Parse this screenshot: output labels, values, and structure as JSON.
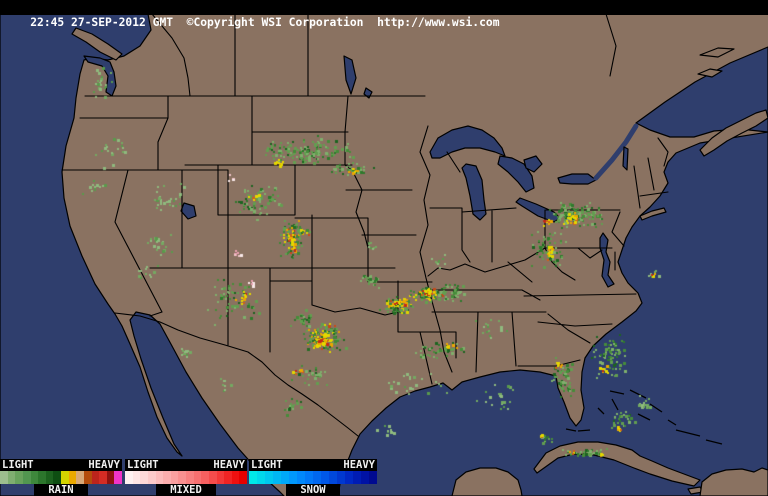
{
  "header": {
    "title": "22:45 27-SEP-2012 GMT  ©Copyright WSI Corporation  http://www.wsi.com"
  },
  "map": {
    "land_color": "#8a7261",
    "water_color": "#2f3e6d",
    "border_color": "#000000",
    "header_bg": "#000000",
    "header_fg": "#ffffff"
  },
  "legend": {
    "sections": [
      {
        "label": "RAIN",
        "light_label": "LIGHT",
        "heavy_label": "HEAVY",
        "colors": [
          "#9cbe8e",
          "#7fae70",
          "#68a25c",
          "#529650",
          "#3e883c",
          "#2c762c",
          "#1c621e",
          "#0e4e12",
          "#d4d400",
          "#eaa800",
          "#d8a878",
          "#b44c0c",
          "#bc241c",
          "#d42c24",
          "#8e1210",
          "#f034c8"
        ]
      },
      {
        "label": "MIXED",
        "light_label": "LIGHT",
        "heavy_label": "HEAVY",
        "colors": [
          "#fef2f2",
          "#fee6e6",
          "#fdd8d8",
          "#fccaca",
          "#fcbcbc",
          "#fbaeae",
          "#faa0a0",
          "#f99090",
          "#f88080",
          "#f77070",
          "#f66060",
          "#f44c4c",
          "#f23838",
          "#f02424",
          "#ee1010",
          "#e60000"
        ]
      },
      {
        "label": "SNOW",
        "light_label": "LIGHT",
        "heavy_label": "HEAVY",
        "colors": [
          "#00e8e8",
          "#00d8ec",
          "#00c8f0",
          "#00b8f4",
          "#00a8f8",
          "#0098fc",
          "#0088fc",
          "#0078f8",
          "#0068f0",
          "#0058e8",
          "#0048dc",
          "#0038d0",
          "#0028c4",
          "#001cb4",
          "#0012a4",
          "#000a90"
        ]
      }
    ]
  },
  "radar": {
    "dot": {
      "small": 2,
      "large": 3,
      "large_prob": 0.25
    },
    "palettes": {
      "light": [
        [
          "#8fba7e",
          5
        ],
        [
          "#74aa62",
          3
        ],
        [
          "#5a9a4c",
          2
        ]
      ],
      "mod": [
        [
          "#7fb06c",
          3
        ],
        [
          "#639e50",
          3
        ],
        [
          "#468c3a",
          2
        ],
        [
          "#2e7a2c",
          1.5
        ],
        [
          "#1c6420",
          1
        ]
      ],
      "heavy": [
        [
          "#63a050",
          3
        ],
        [
          "#3f8838",
          2.5
        ],
        [
          "#256c24",
          2
        ],
        [
          "#e0d400",
          1.5
        ],
        [
          "#e8a400",
          0.8
        ],
        [
          "#c84818",
          0.4
        ]
      ],
      "core": [
        [
          "#e4d800",
          5
        ],
        [
          "#eca800",
          3
        ],
        [
          "#d06018",
          1.5
        ],
        [
          "#c42818",
          1
        ]
      ],
      "mixedp": [
        [
          "#f8e8e8",
          3
        ],
        [
          "#f0c4c8",
          2
        ],
        [
          "#e8a0b0",
          1
        ]
      ]
    },
    "clusters": [
      [
        100,
        80,
        16,
        18,
        22,
        "light"
      ],
      [
        112,
        148,
        18,
        22,
        18,
        "light"
      ],
      [
        92,
        186,
        13,
        10,
        12,
        "light"
      ],
      [
        168,
        198,
        20,
        16,
        28,
        "light"
      ],
      [
        158,
        243,
        16,
        13,
        22,
        "light"
      ],
      [
        146,
        270,
        12,
        9,
        12,
        "light"
      ],
      [
        305,
        150,
        52,
        15,
        150,
        "mod"
      ],
      [
        352,
        168,
        24,
        7,
        40,
        "mod"
      ],
      [
        278,
        161,
        5,
        4,
        10,
        "core"
      ],
      [
        352,
        170,
        6,
        3,
        8,
        "core"
      ],
      [
        255,
        200,
        26,
        20,
        70,
        "mod"
      ],
      [
        252,
        197,
        7,
        5,
        10,
        "core"
      ],
      [
        290,
        238,
        13,
        20,
        80,
        "heavy"
      ],
      [
        291,
        240,
        4,
        13,
        35,
        "core"
      ],
      [
        302,
        230,
        12,
        7,
        25,
        "heavy"
      ],
      [
        233,
        300,
        32,
        28,
        60,
        "mod"
      ],
      [
        244,
        297,
        10,
        8,
        12,
        "core"
      ],
      [
        322,
        337,
        24,
        15,
        130,
        "heavy"
      ],
      [
        322,
        339,
        11,
        7,
        40,
        "core"
      ],
      [
        300,
        317,
        13,
        9,
        25,
        "mod"
      ],
      [
        370,
        280,
        12,
        8,
        25,
        "mod"
      ],
      [
        395,
        304,
        18,
        9,
        70,
        "heavy"
      ],
      [
        425,
        294,
        17,
        8,
        70,
        "heavy"
      ],
      [
        398,
        302,
        9,
        4,
        25,
        "core"
      ],
      [
        428,
        292,
        9,
        4,
        25,
        "core"
      ],
      [
        450,
        292,
        18,
        11,
        50,
        "mod"
      ],
      [
        308,
        374,
        22,
        13,
        30,
        "mod"
      ],
      [
        292,
        406,
        13,
        9,
        16,
        "mod"
      ],
      [
        296,
        371,
        7,
        3,
        7,
        "core"
      ],
      [
        435,
        349,
        32,
        9,
        45,
        "mod"
      ],
      [
        449,
        345,
        10,
        3,
        10,
        "core"
      ],
      [
        418,
        383,
        35,
        13,
        25,
        "light"
      ],
      [
        498,
        394,
        26,
        16,
        20,
        "light"
      ],
      [
        390,
        430,
        14,
        7,
        10,
        "light"
      ],
      [
        490,
        328,
        22,
        12,
        16,
        "light"
      ],
      [
        370,
        245,
        10,
        7,
        8,
        "light"
      ],
      [
        440,
        260,
        13,
        9,
        10,
        "light"
      ],
      [
        608,
        356,
        19,
        23,
        80,
        "mod"
      ],
      [
        602,
        369,
        6,
        4,
        9,
        "core"
      ],
      [
        562,
        377,
        13,
        22,
        50,
        "mod"
      ],
      [
        558,
        364,
        5,
        5,
        10,
        "core"
      ],
      [
        622,
        419,
        13,
        11,
        30,
        "mod"
      ],
      [
        645,
        403,
        11,
        9,
        16,
        "light"
      ],
      [
        618,
        427,
        5,
        4,
        9,
        "core"
      ],
      [
        584,
        452,
        24,
        5,
        40,
        "mod"
      ],
      [
        571,
        451,
        3,
        2,
        4,
        "core"
      ],
      [
        601,
        454,
        3,
        2,
        4,
        "core"
      ],
      [
        545,
        439,
        8,
        6,
        14,
        "mod"
      ],
      [
        541,
        435,
        3,
        2,
        5,
        "core"
      ],
      [
        575,
        214,
        30,
        14,
        130,
        "mod"
      ],
      [
        571,
        217,
        9,
        7,
        25,
        "core"
      ],
      [
        545,
        221,
        6,
        4,
        10,
        "core"
      ],
      [
        548,
        249,
        18,
        22,
        60,
        "mod"
      ],
      [
        549,
        252,
        4,
        10,
        18,
        "core"
      ],
      [
        652,
        272,
        6,
        5,
        8,
        "light"
      ],
      [
        653,
        273,
        2,
        2,
        3,
        "core"
      ],
      [
        185,
        351,
        11,
        5,
        14,
        "light"
      ],
      [
        224,
        384,
        11,
        7,
        8,
        "light"
      ],
      [
        236,
        253,
        7,
        5,
        7,
        "mixedp"
      ],
      [
        231,
        177,
        5,
        4,
        5,
        "mixedp"
      ],
      [
        252,
        282,
        6,
        4,
        5,
        "mixedp"
      ]
    ]
  }
}
